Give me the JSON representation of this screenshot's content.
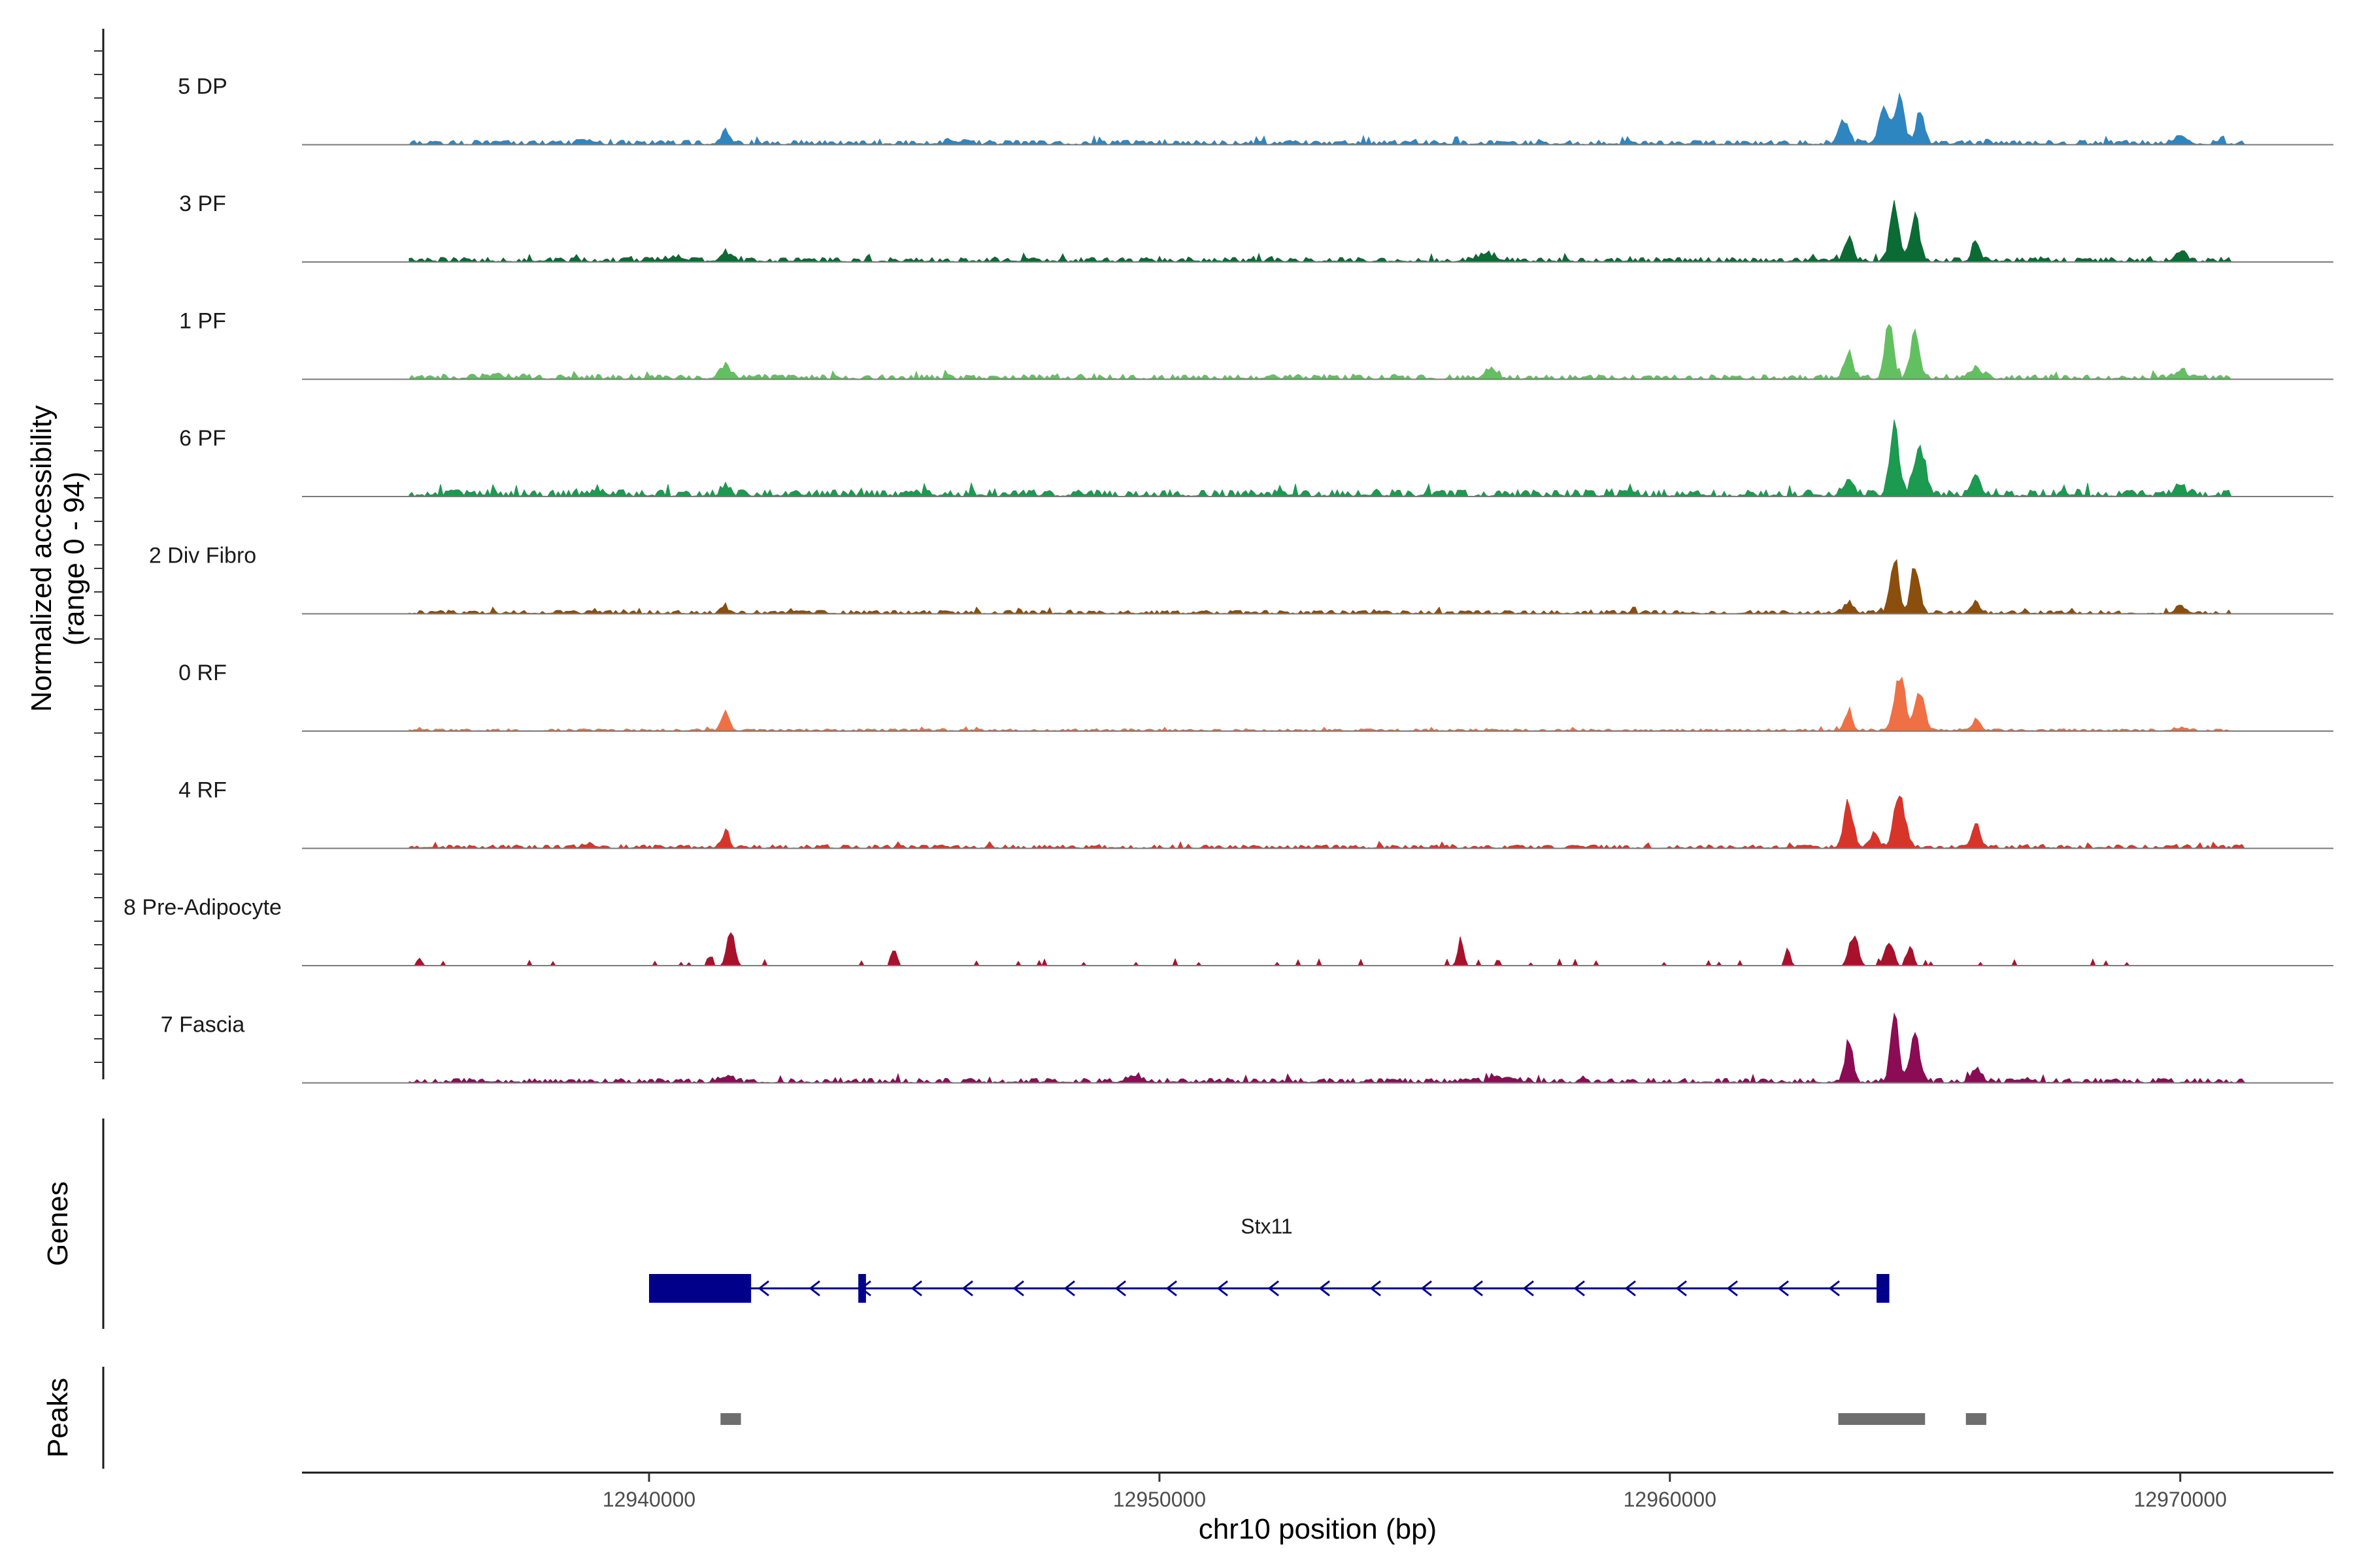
{
  "chart_data": {
    "type": "area",
    "title": "",
    "y_axis_title_lines": [
      "Normalized accessibility",
      "(range 0 - 94)"
    ],
    "y_range": [
      0,
      94
    ],
    "x_axis_title": "chr10 position (bp)",
    "x_range": [
      12933200,
      12973000
    ],
    "x_ticks": [
      12940000,
      12950000,
      12960000,
      12970000
    ],
    "x_tick_labels": [
      "12940000",
      "12950000",
      "12960000",
      "12970000"
    ],
    "tracks": [
      {
        "name": "5 DP",
        "color": "#2E86C1",
        "background": {
          "start": 12935300,
          "end": 12971300,
          "level": 2
        },
        "peaks": [
          [
            12941500,
            14,
            130
          ],
          [
            12963400,
            30,
            160
          ],
          [
            12964200,
            42,
            170
          ],
          [
            12964500,
            52,
            160
          ],
          [
            12964900,
            40,
            130
          ],
          [
            12970000,
            10,
            220
          ],
          [
            12938800,
            5,
            200
          ],
          [
            12946000,
            3,
            300
          ]
        ]
      },
      {
        "name": "3 PF",
        "color": "#0B6B35",
        "background": {
          "start": 12935300,
          "end": 12971000,
          "level": 2
        },
        "peaks": [
          [
            12941500,
            10,
            140
          ],
          [
            12956400,
            8,
            300
          ],
          [
            12963500,
            30,
            120
          ],
          [
            12964400,
            68,
            140
          ],
          [
            12964800,
            55,
            140
          ],
          [
            12966000,
            24,
            130
          ],
          [
            12970000,
            11,
            180
          ],
          [
            12940500,
            4,
            400
          ]
        ]
      },
      {
        "name": "1 PF",
        "color": "#62C061",
        "background": {
          "start": 12935300,
          "end": 12971000,
          "level": 2
        },
        "peaks": [
          [
            12941500,
            12,
            190
          ],
          [
            12956500,
            10,
            200
          ],
          [
            12963500,
            28,
            140
          ],
          [
            12964300,
            68,
            130
          ],
          [
            12964800,
            60,
            140
          ],
          [
            12966000,
            12,
            200
          ],
          [
            12970000,
            10,
            180
          ],
          [
            12937000,
            3,
            400
          ]
        ]
      },
      {
        "name": "6 PF",
        "color": "#1B9A50",
        "background": {
          "start": 12935300,
          "end": 12971000,
          "level": 3
        },
        "peaks": [
          [
            12941500,
            12,
            140
          ],
          [
            12963500,
            20,
            160
          ],
          [
            12964400,
            75,
            150
          ],
          [
            12964900,
            55,
            170
          ],
          [
            12966000,
            18,
            150
          ],
          [
            12970000,
            8,
            180
          ],
          [
            12939000,
            4,
            300
          ]
        ]
      },
      {
        "name": "2 Div Fibro",
        "color": "#8A4E0D",
        "background": {
          "start": 12935300,
          "end": 12971000,
          "level": 1.5
        },
        "peaks": [
          [
            12941500,
            6,
            150
          ],
          [
            12963500,
            12,
            160
          ],
          [
            12964400,
            70,
            140
          ],
          [
            12964800,
            58,
            140
          ],
          [
            12966000,
            14,
            120
          ],
          [
            12970000,
            8,
            150
          ]
        ]
      },
      {
        "name": "0 RF",
        "color": "#F07045",
        "background": {
          "start": 12935300,
          "end": 12971000,
          "level": 1
        },
        "peaks": [
          [
            12941500,
            24,
            120
          ],
          [
            12963500,
            24,
            120
          ],
          [
            12964500,
            70,
            170
          ],
          [
            12964900,
            48,
            150
          ],
          [
            12966000,
            14,
            110
          ],
          [
            12970000,
            3,
            200
          ]
        ]
      },
      {
        "name": "4 RF",
        "color": "#D8352A",
        "background": {
          "start": 12935300,
          "end": 12971300,
          "level": 1.5
        },
        "peaks": [
          [
            12941500,
            20,
            110
          ],
          [
            12963500,
            55,
            150
          ],
          [
            12964500,
            68,
            170
          ],
          [
            12964000,
            18,
            140
          ],
          [
            12966000,
            28,
            130
          ],
          [
            12938800,
            4,
            200
          ]
        ]
      },
      {
        "name": "8 Pre-Adipocyte",
        "color": "#A8112C",
        "background": {
          "start": 12935300,
          "end": 12969800,
          "level": 0
        },
        "peaks": [
          [
            12941600,
            40,
            120
          ],
          [
            12955900,
            32,
            90
          ],
          [
            12963600,
            38,
            140
          ],
          [
            12964300,
            30,
            140
          ],
          [
            12964700,
            22,
            120
          ],
          [
            12962300,
            20,
            90
          ],
          [
            12944800,
            18,
            110
          ],
          [
            12941200,
            12,
            100
          ],
          [
            12935500,
            8,
            80
          ]
        ]
      },
      {
        "name": "7 Fascia",
        "color": "#8B0C55",
        "background": {
          "start": 12935300,
          "end": 12971300,
          "level": 2
        },
        "peaks": [
          [
            12941500,
            6,
            200
          ],
          [
            12963500,
            50,
            120
          ],
          [
            12964400,
            80,
            130
          ],
          [
            12964800,
            55,
            150
          ],
          [
            12966000,
            16,
            150
          ],
          [
            12949500,
            8,
            200
          ],
          [
            12956800,
            6,
            300
          ]
        ]
      }
    ],
    "genes_panel_title": "Genes",
    "gene": {
      "name": "Stx11",
      "strand": "-",
      "color": "#00008B",
      "start": 12940000,
      "end": 12964300,
      "exons": [
        [
          12940000,
          12942000
        ],
        [
          12944100,
          12944250
        ],
        [
          12964050,
          12964300
        ]
      ],
      "utr": [
        [
          12964050,
          12964300
        ]
      ]
    },
    "peaks_panel_title": "Peaks",
    "peak_regions": [
      [
        12941400,
        12941800
      ],
      [
        12963300,
        12965000
      ],
      [
        12965800,
        12966200
      ]
    ],
    "peak_color": "#6E6E6E"
  }
}
